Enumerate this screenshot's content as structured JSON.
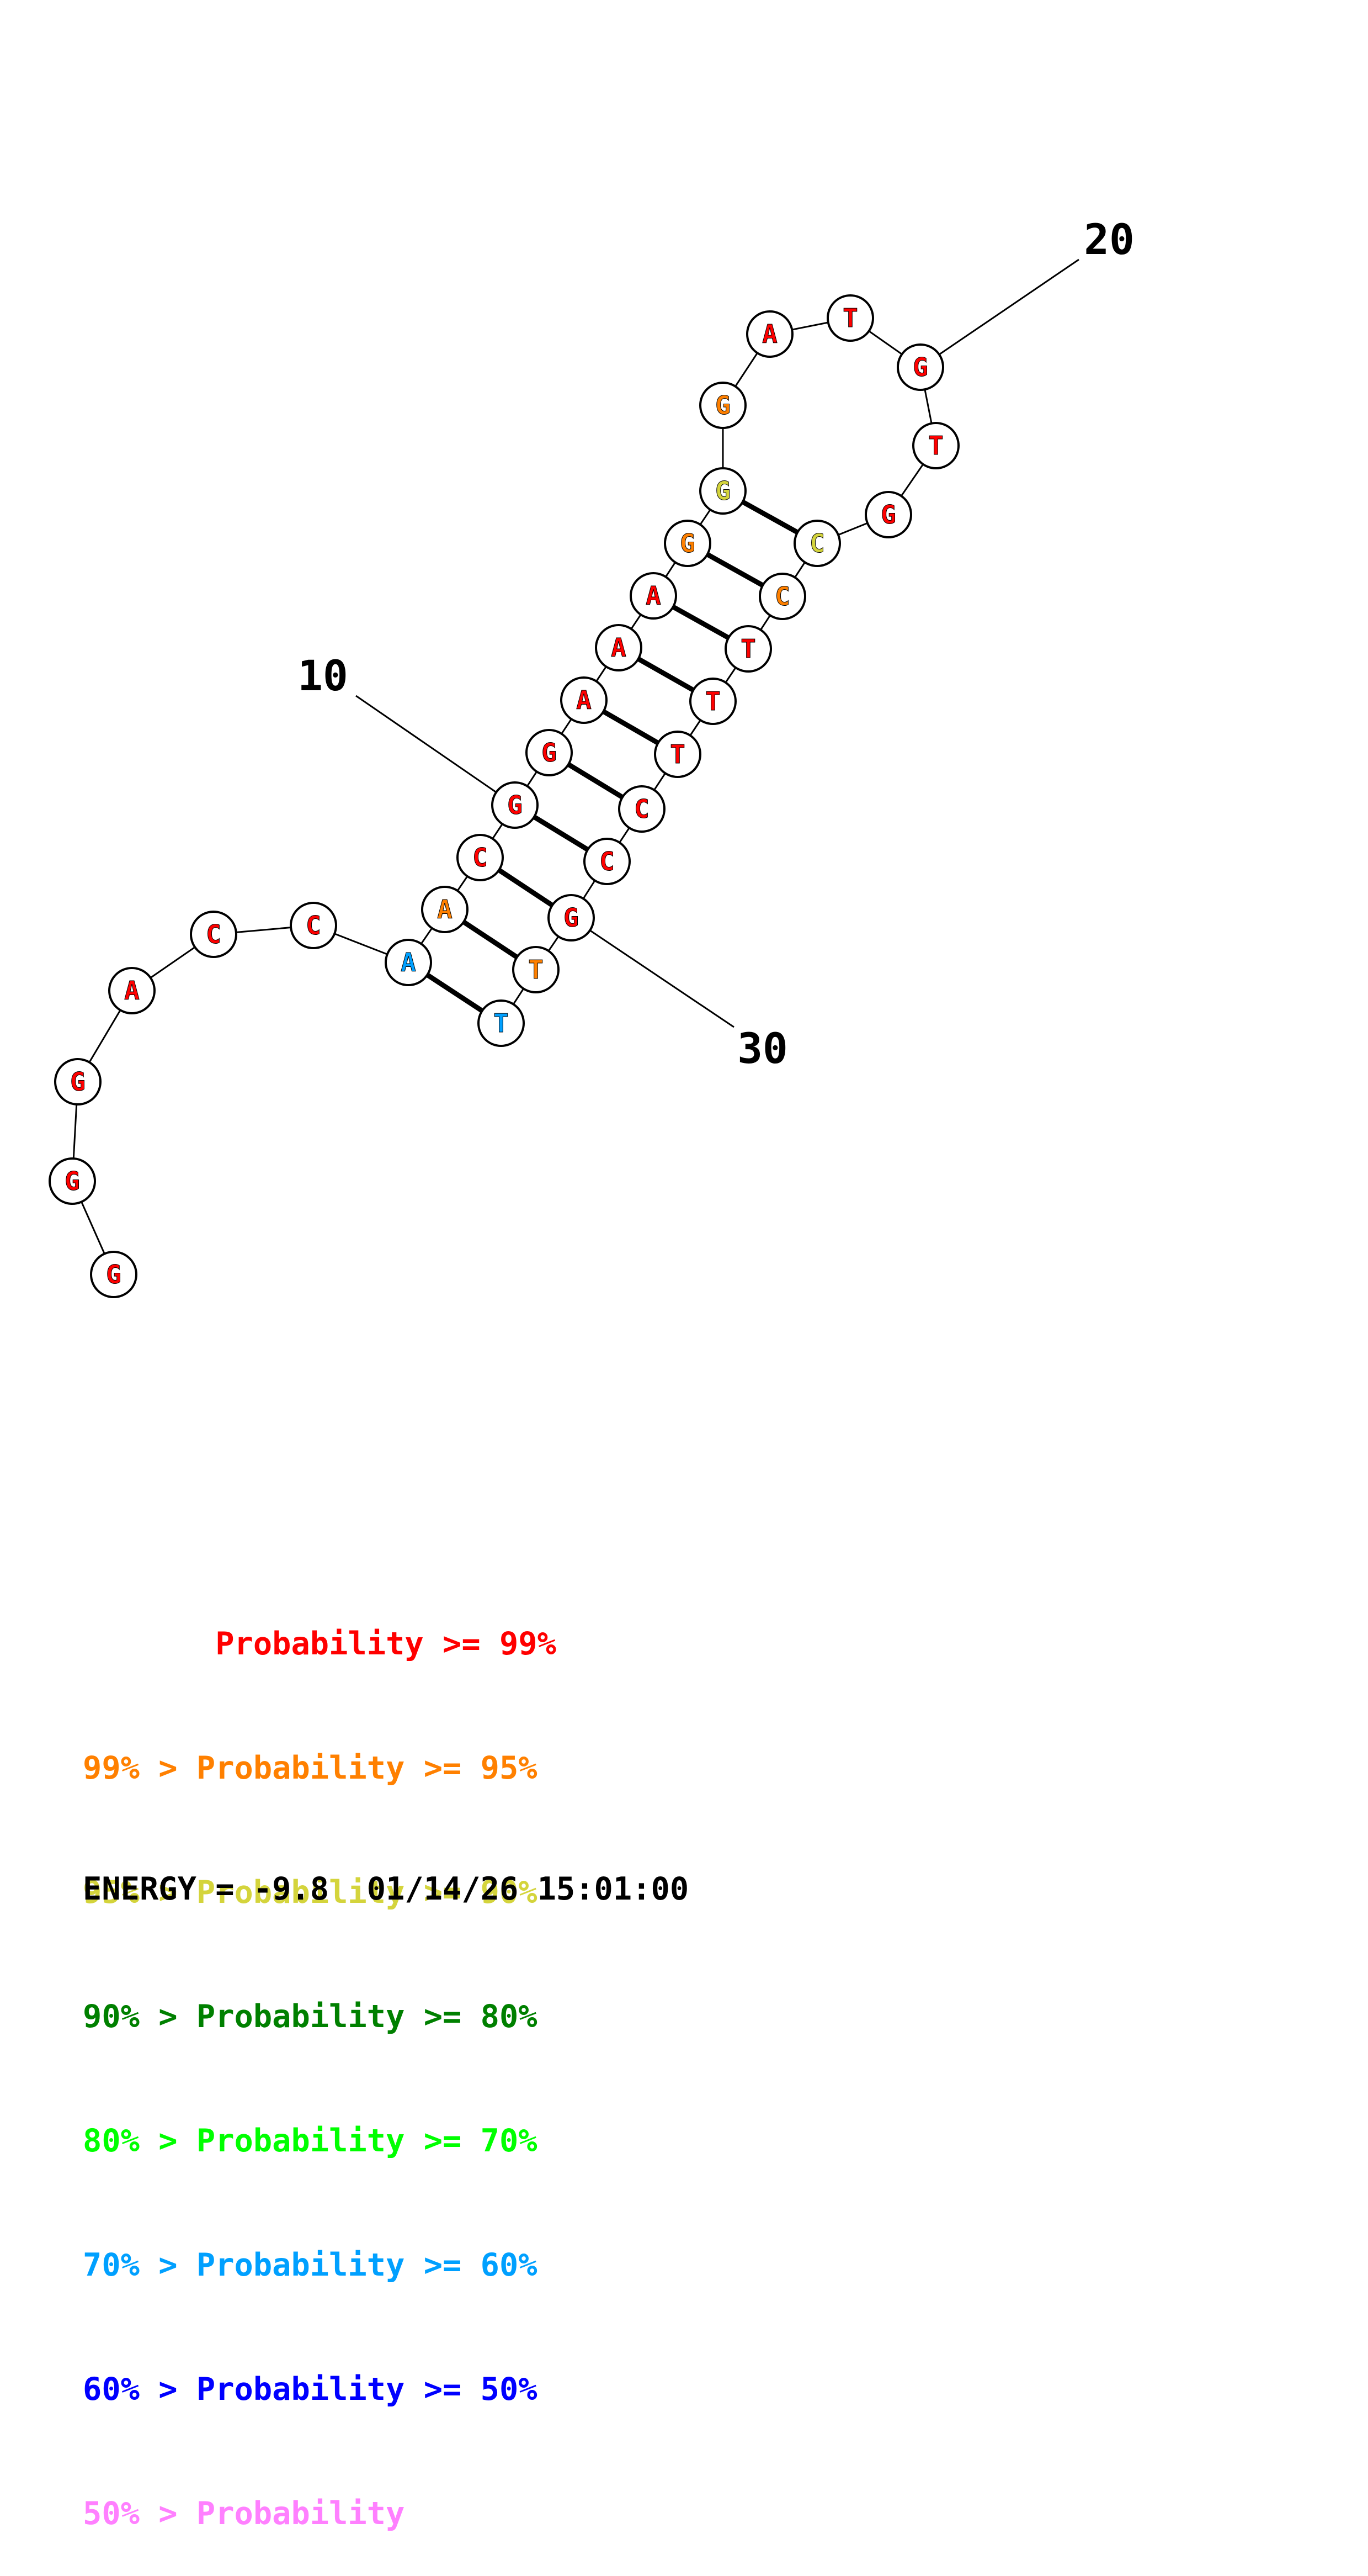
{
  "structure": {
    "nucleotides": [
      {
        "n": 1,
        "base": "G",
        "level": 0
      },
      {
        "n": 2,
        "base": "G",
        "level": 0
      },
      {
        "n": 3,
        "base": "G",
        "level": 0
      },
      {
        "n": 4,
        "base": "A",
        "level": 0
      },
      {
        "n": 5,
        "base": "C",
        "level": 0
      },
      {
        "n": 6,
        "base": "C",
        "level": 0
      },
      {
        "n": 7,
        "base": "A",
        "level": 5
      },
      {
        "n": 8,
        "base": "A",
        "level": 1
      },
      {
        "n": 9,
        "base": "C",
        "level": 0
      },
      {
        "n": 10,
        "base": "G",
        "level": 0
      },
      {
        "n": 11,
        "base": "G",
        "level": 0
      },
      {
        "n": 12,
        "base": "A",
        "level": 0
      },
      {
        "n": 13,
        "base": "A",
        "level": 0
      },
      {
        "n": 14,
        "base": "A",
        "level": 0
      },
      {
        "n": 15,
        "base": "G",
        "level": 1
      },
      {
        "n": 16,
        "base": "G",
        "level": 2
      },
      {
        "n": 17,
        "base": "G",
        "level": 1
      },
      {
        "n": 18,
        "base": "A",
        "level": 0
      },
      {
        "n": 19,
        "base": "T",
        "level": 0
      },
      {
        "n": 20,
        "base": "G",
        "level": 0
      },
      {
        "n": 21,
        "base": "T",
        "level": 0
      },
      {
        "n": 22,
        "base": "G",
        "level": 0
      },
      {
        "n": 23,
        "base": "C",
        "level": 2
      },
      {
        "n": 24,
        "base": "C",
        "level": 1
      },
      {
        "n": 25,
        "base": "T",
        "level": 0
      },
      {
        "n": 26,
        "base": "T",
        "level": 0
      },
      {
        "n": 27,
        "base": "T",
        "level": 0
      },
      {
        "n": 28,
        "base": "C",
        "level": 0
      },
      {
        "n": 29,
        "base": "C",
        "level": 0
      },
      {
        "n": 30,
        "base": "G",
        "level": 0
      },
      {
        "n": 31,
        "base": "T",
        "level": 1
      },
      {
        "n": 32,
        "base": "T",
        "level": 5
      }
    ],
    "pairs": [
      [
        7,
        32
      ],
      [
        8,
        31
      ],
      [
        9,
        30
      ],
      [
        10,
        29
      ],
      [
        11,
        28
      ],
      [
        12,
        27
      ],
      [
        13,
        26
      ],
      [
        14,
        25
      ],
      [
        15,
        24
      ],
      [
        16,
        23
      ]
    ],
    "position_labels": [
      {
        "n": 10,
        "text": "10"
      },
      {
        "n": 20,
        "text": "20"
      },
      {
        "n": 30,
        "text": "30"
      }
    ]
  },
  "legend": {
    "colors": [
      "#ff0000",
      "#ff8000",
      "#d4d43c",
      "#008000",
      "#00ff00",
      "#00a0ff",
      "#0000ff",
      "#ff80ff"
    ],
    "rows": [
      "       Probability >= 99%",
      "99% > Probability >= 95%",
      "95% > Probability >= 90%",
      "90% > Probability >= 80%",
      "80% > Probability >= 70%",
      "70% > Probability >= 60%",
      "60% > Probability >= 50%",
      "50% > Probability"
    ]
  },
  "footer": {
    "energy_text": "ENERGY = -9.8  01/14/26 15:01:00"
  }
}
